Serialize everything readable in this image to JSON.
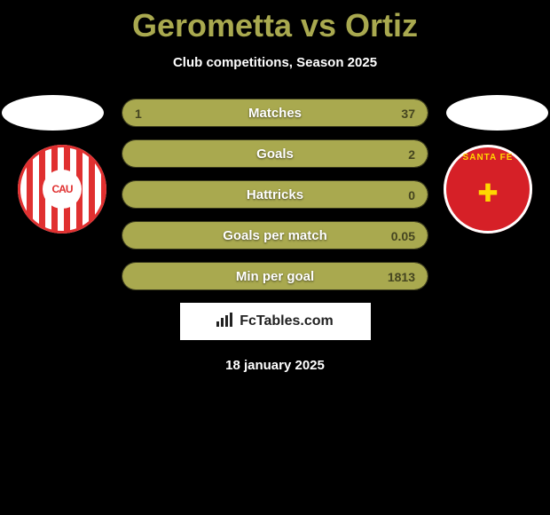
{
  "title": "Gerometta vs Ortiz",
  "subtitle": "Club competitions, Season 2025",
  "date": "18 january 2025",
  "site": "FcTables.com",
  "colors": {
    "background": "#000000",
    "accent": "#a9a94f",
    "text_white": "#ffffff",
    "stat_value": "#454520",
    "logo_left_red": "#e03030",
    "logo_right_red": "#d62027",
    "logo_right_gold": "#ffd700"
  },
  "logo_left": {
    "abbr": "CAU"
  },
  "logo_right": {
    "arc_text": "SANTA FE",
    "symbol": "✚"
  },
  "stats": [
    {
      "label": "Matches",
      "left_val": "1",
      "right_val": "37",
      "left_pct": 2.6,
      "right_pct": 97.4
    },
    {
      "label": "Goals",
      "left_val": "",
      "right_val": "2",
      "left_pct": 0,
      "right_pct": 100
    },
    {
      "label": "Hattricks",
      "left_val": "",
      "right_val": "0",
      "left_pct": 0,
      "right_pct": 100
    },
    {
      "label": "Goals per match",
      "left_val": "",
      "right_val": "0.05",
      "left_pct": 0,
      "right_pct": 100
    },
    {
      "label": "Min per goal",
      "left_val": "",
      "right_val": "1813",
      "left_pct": 0,
      "right_pct": 100
    }
  ]
}
